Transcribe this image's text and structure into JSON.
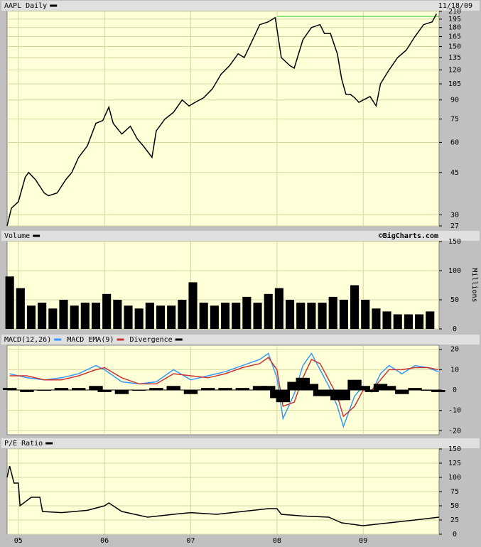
{
  "chart_data": [
    {
      "type": "line",
      "title": "AAPL Daily",
      "date": "11/18/09",
      "log_scale": true,
      "grid": true,
      "xlim": [
        2004.87,
        2009.88
      ],
      "xticks": [
        {
          "value": 2005,
          "label": "05"
        },
        {
          "value": 2006,
          "label": "06"
        },
        {
          "value": 2007,
          "label": "07"
        },
        {
          "value": 2008,
          "label": "08"
        },
        {
          "value": 2009,
          "label": "09"
        }
      ],
      "ylim": [
        27,
        210
      ],
      "yticks": [
        27,
        30,
        45,
        60,
        75,
        90,
        105,
        120,
        135,
        150,
        165,
        180,
        195,
        210
      ],
      "reference_line": {
        "value": 200,
        "start": 2008.0,
        "color": "#33cc33"
      },
      "series": [
        {
          "name": "AAPL Daily",
          "color": "#000000",
          "x": [
            2004.87,
            2004.92,
            2005.0,
            2005.08,
            2005.12,
            2005.2,
            2005.3,
            2005.35,
            2005.45,
            2005.55,
            2005.62,
            2005.7,
            2005.8,
            2005.9,
            2005.98,
            2006.05,
            2006.1,
            2006.2,
            2006.3,
            2006.38,
            2006.45,
            2006.55,
            2006.6,
            2006.7,
            2006.8,
            2006.9,
            2006.98,
            2007.05,
            2007.15,
            2007.25,
            2007.35,
            2007.45,
            2007.55,
            2007.62,
            2007.7,
            2007.8,
            2007.9,
            2007.98,
            2008.05,
            2008.15,
            2008.2,
            2008.3,
            2008.4,
            2008.5,
            2008.55,
            2008.62,
            2008.7,
            2008.75,
            2008.8,
            2008.85,
            2008.9,
            2008.95,
            2009.0,
            2009.08,
            2009.15,
            2009.2,
            2009.3,
            2009.4,
            2009.5,
            2009.6,
            2009.7,
            2009.8,
            2009.85
          ],
          "values": [
            27,
            32,
            34,
            43,
            45,
            42,
            37,
            36,
            37,
            42,
            45,
            52,
            58,
            72,
            74,
            84,
            72,
            65,
            70,
            62,
            58,
            52,
            67,
            75,
            80,
            90,
            85,
            88,
            92,
            100,
            115,
            125,
            140,
            135,
            155,
            185,
            190,
            198,
            135,
            125,
            122,
            160,
            180,
            185,
            170,
            170,
            140,
            110,
            95,
            95,
            92,
            88,
            90,
            93,
            85,
            105,
            120,
            135,
            145,
            165,
            185,
            190,
            205
          ]
        }
      ]
    },
    {
      "type": "bar",
      "title": "Volume",
      "source": "©BigCharts.com",
      "y_label": "Millions",
      "grid": true,
      "xlim": [
        2004.87,
        2009.88
      ],
      "xticks": [
        {
          "value": 2005,
          "label": "05"
        },
        {
          "value": 2006,
          "label": "06"
        },
        {
          "value": 2007,
          "label": "07"
        },
        {
          "value": 2008,
          "label": "08"
        },
        {
          "value": 2009,
          "label": "09"
        }
      ],
      "ylim": [
        0,
        150
      ],
      "yticks": [
        0,
        50,
        100,
        150
      ],
      "series": [
        {
          "name": "Volume",
          "color": "#000000",
          "x": [
            2004.9,
            2005.025,
            2005.15,
            2005.275,
            2005.4,
            2005.525,
            2005.65,
            2005.775,
            2005.9,
            2006.025,
            2006.15,
            2006.275,
            2006.4,
            2006.525,
            2006.65,
            2006.775,
            2006.9,
            2007.025,
            2007.15,
            2007.275,
            2007.4,
            2007.525,
            2007.65,
            2007.775,
            2007.9,
            2008.025,
            2008.15,
            2008.275,
            2008.4,
            2008.525,
            2008.65,
            2008.775,
            2008.9,
            2009.025,
            2009.15,
            2009.275,
            2009.4,
            2009.525,
            2009.65,
            2009.775
          ],
          "values": [
            90,
            70,
            40,
            45,
            35,
            50,
            40,
            45,
            45,
            60,
            50,
            40,
            35,
            45,
            40,
            40,
            50,
            80,
            45,
            40,
            45,
            45,
            55,
            45,
            60,
            70,
            50,
            45,
            45,
            45,
            55,
            50,
            75,
            50,
            35,
            30,
            25,
            25,
            25,
            30
          ]
        }
      ]
    },
    {
      "type": "line",
      "title": "MACD(12,26)",
      "grid": true,
      "xlim": [
        2004.87,
        2009.88
      ],
      "xticks": [
        {
          "value": 2005,
          "label": "05"
        },
        {
          "value": 2006,
          "label": "06"
        },
        {
          "value": 2007,
          "label": "07"
        },
        {
          "value": 2008,
          "label": "08"
        },
        {
          "value": 2009,
          "label": "09"
        }
      ],
      "ylim": [
        -22,
        22
      ],
      "yticks": [
        -20,
        -10,
        0,
        10,
        20
      ],
      "x": [
        2004.9,
        2005.1,
        2005.3,
        2005.5,
        2005.7,
        2005.9,
        2006.0,
        2006.2,
        2006.4,
        2006.6,
        2006.8,
        2007.0,
        2007.2,
        2007.4,
        2007.6,
        2007.8,
        2007.9,
        2008.0,
        2008.07,
        2008.2,
        2008.3,
        2008.4,
        2008.5,
        2008.6,
        2008.7,
        2008.77,
        2008.9,
        2009.0,
        2009.1,
        2009.2,
        2009.3,
        2009.45,
        2009.6,
        2009.75,
        2009.87
      ],
      "series": [
        {
          "name": "MACD(12,26)",
          "type": "line",
          "color": "#3399ff",
          "values": [
            8,
            6,
            5,
            6,
            8,
            12,
            10,
            4,
            3,
            4,
            10,
            5,
            7,
            9,
            12,
            15,
            18,
            6,
            -14,
            -2,
            12,
            18,
            10,
            2,
            -8,
            -18,
            -3,
            2,
            -1,
            8,
            12,
            8,
            12,
            11,
            9
          ]
        },
        {
          "name": "MACD EMA(9)",
          "type": "line",
          "color": "#cc3333",
          "values": [
            7,
            7,
            5,
            5,
            7,
            10,
            11,
            6,
            3,
            3,
            8,
            7,
            6,
            8,
            11,
            13,
            16,
            10,
            -8,
            -6,
            6,
            15,
            13,
            5,
            -3,
            -13,
            -8,
            0,
            0,
            5,
            10,
            10,
            11,
            11,
            10
          ]
        },
        {
          "name": "Divergence",
          "type": "bar",
          "color": "#000000",
          "values": [
            1,
            -1,
            0,
            1,
            1,
            2,
            -1,
            -2,
            0,
            1,
            2,
            -2,
            1,
            1,
            1,
            2,
            2,
            -4,
            -6,
            4,
            6,
            3,
            -3,
            -3,
            -5,
            -5,
            5,
            2,
            -1,
            3,
            2,
            -2,
            1,
            0,
            -1
          ]
        }
      ]
    },
    {
      "type": "line",
      "title": "P/E Ratio",
      "grid": true,
      "xlim": [
        2004.87,
        2009.88
      ],
      "xticks": [
        {
          "value": 2005,
          "label": "05"
        },
        {
          "value": 2006,
          "label": "06"
        },
        {
          "value": 2007,
          "label": "07"
        },
        {
          "value": 2008,
          "label": "08"
        },
        {
          "value": 2009,
          "label": "09"
        }
      ],
      "ylim": [
        0,
        150
      ],
      "yticks": [
        0,
        25,
        50,
        75,
        100,
        125,
        150
      ],
      "series": [
        {
          "name": "P/E Ratio",
          "color": "#000000",
          "x": [
            2004.87,
            2004.9,
            2004.95,
            2005.0,
            2005.02,
            2005.15,
            2005.25,
            2005.28,
            2005.5,
            2005.8,
            2006.0,
            2006.05,
            2006.2,
            2006.5,
            2006.8,
            2007.0,
            2007.3,
            2007.6,
            2007.9,
            2008.0,
            2008.05,
            2008.3,
            2008.6,
            2008.75,
            2009.0,
            2009.3,
            2009.6,
            2009.88
          ],
          "values": [
            100,
            120,
            90,
            90,
            50,
            65,
            65,
            40,
            38,
            42,
            50,
            55,
            40,
            30,
            35,
            38,
            35,
            40,
            45,
            45,
            35,
            32,
            30,
            20,
            15,
            20,
            25,
            30
          ]
        }
      ]
    }
  ]
}
